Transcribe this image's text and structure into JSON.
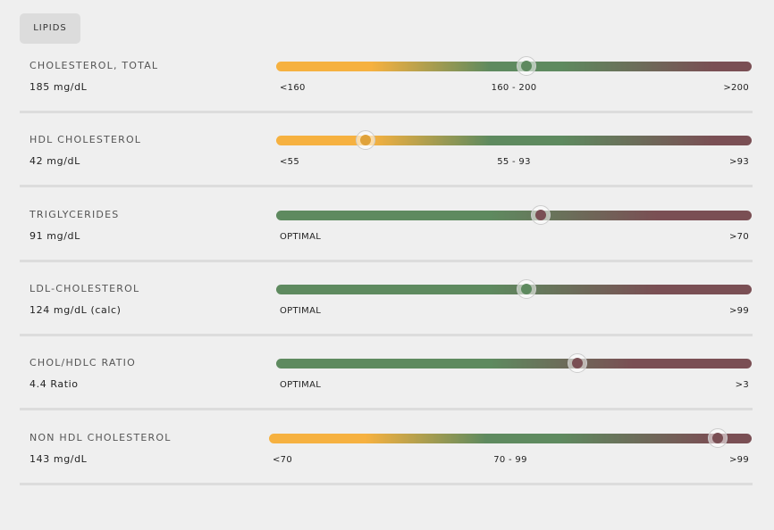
{
  "tab": "LIPIDS",
  "rows": [
    {
      "name": "CHOLESTEROL, TOTAL",
      "value": "185 mg/dL",
      "labels": [
        "<160",
        "160 - 200",
        ">200"
      ]
    },
    {
      "name": "HDL CHOLESTEROL",
      "value": "42 mg/dL",
      "labels": [
        "<55",
        "55 - 93",
        ">93"
      ]
    },
    {
      "name": "TRIGLYCERIDES",
      "value": "91 mg/dL",
      "labels": [
        "OPTIMAL",
        ">70"
      ]
    },
    {
      "name": "LDL-CHOLESTEROL",
      "value": "124 mg/dL (calc)",
      "labels": [
        "OPTIMAL",
        ">99"
      ]
    },
    {
      "name": "CHOL/HDLC RATIO",
      "value": "4.4 Ratio",
      "labels": [
        "OPTIMAL",
        ">3"
      ]
    },
    {
      "name": "NON HDL CHOLESTEROL",
      "value": "143 mg/dL",
      "labels": [
        "<70",
        "70 - 99",
        ">99"
      ]
    }
  ]
}
